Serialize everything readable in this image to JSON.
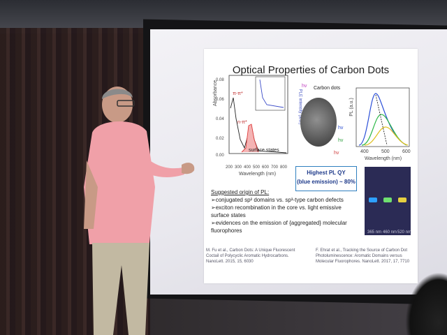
{
  "slide": {
    "title": "Optical Properties of Carbon Dots",
    "abs_chart": {
      "ylabel": "Absorbance",
      "xlabel": "Wavelength (nm)",
      "yticks": [
        "0.08",
        "0.06",
        "0.04",
        "0.02",
        "0.00"
      ],
      "xticks": [
        "200",
        "300",
        "400",
        "500",
        "600",
        "700",
        "800"
      ],
      "labels": [
        "π-π*",
        "n-π*",
        "surface states"
      ],
      "inset_ylabel": "PLE intensity (a.u.)"
    },
    "dots_label": "Carbon dots",
    "hv_labels": [
      "hv",
      "hv",
      "hv",
      "hv"
    ],
    "pl_chart": {
      "ylabel": "PL (a.u.)",
      "xlabel": "Wavelength (nm)",
      "xticks": [
        "400",
        "500",
        "600"
      ]
    },
    "qy_box": [
      "Highest PL QY",
      "(blue emission) ~ 80%"
    ],
    "photo_captions": [
      "365 nm",
      "460 nm",
      "520 nm"
    ],
    "notes_header": "Suggested origin of PL:",
    "notes": [
      "➢conjugated sp² domains vs. sp³-type carbon defects",
      "➢exciton recombination in the core vs. light emissive surface states",
      "➢evidences on the emission of {aggregated} molecular fluorophores"
    ],
    "ref_left": "M. Fu et al., Carbon Dots: A Unique Fluorescent Coctail of Polycyclic Aromatic Hydrocarbons. NanoLett. 2015, 15, 6030",
    "ref_right": "F. Ehrat et al., Tracking the Source of Carbon Dot Photoluminescence: Aromatic Domains versus Molecular Fluorophores. NanoLett. 2017, 17, 7710"
  },
  "colors": {
    "accent_blue": "#2f7fbf",
    "pl_blue": "#2b4fd8",
    "pl_green": "#2fb84a",
    "pl_yellow": "#e0c020",
    "abs_red": "#e03c3c"
  }
}
